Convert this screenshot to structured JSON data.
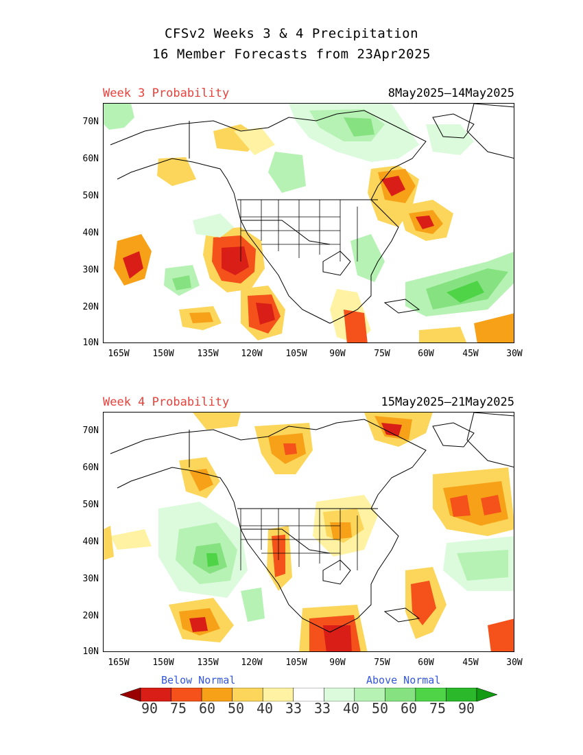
{
  "title_line1": "CFSv2 Weeks 3 & 4 Precipitation",
  "title_line2": "16 Member Forecasts from 23Apr2025",
  "panels": [
    {
      "label": "Week 3 Probability",
      "dates": "8May2025—14May2025"
    },
    {
      "label": "Week 4 Probability",
      "dates": "15May2025—21May2025"
    }
  ],
  "y_ticks": [
    "70N",
    "60N",
    "50N",
    "40N",
    "30N",
    "20N",
    "10N"
  ],
  "x_ticks": [
    "165W",
    "150W",
    "135W",
    "120W",
    "105W",
    "90W",
    "75W",
    "60W",
    "45W",
    "30W"
  ],
  "legend": {
    "below_label": "Below Normal",
    "above_label": "Above Normal",
    "values": [
      "90",
      "75",
      "60",
      "50",
      "40",
      "33",
      "33",
      "40",
      "50",
      "60",
      "75",
      "90"
    ],
    "colors": {
      "below": [
        "#9b0000",
        "#d81e16",
        "#f5521b",
        "#f7a119",
        "#fbd65a",
        "#fff3a3"
      ],
      "normal": "#ffffff",
      "above": [
        "#dcfbdc",
        "#b6f2b3",
        "#86e281",
        "#4ed446",
        "#2bb82a",
        "#139b13"
      ]
    }
  }
}
